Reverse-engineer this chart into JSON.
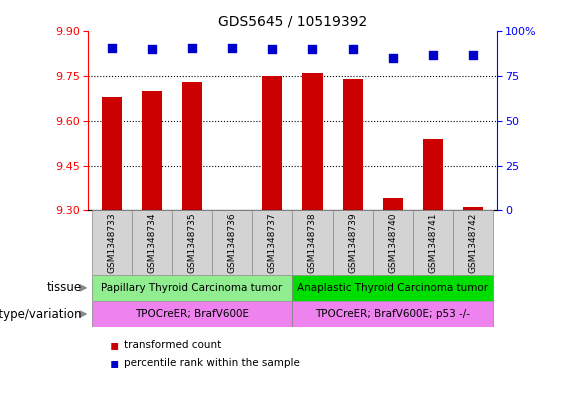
{
  "title": "GDS5645 / 10519392",
  "samples": [
    "GSM1348733",
    "GSM1348734",
    "GSM1348735",
    "GSM1348736",
    "GSM1348737",
    "GSM1348738",
    "GSM1348739",
    "GSM1348740",
    "GSM1348741",
    "GSM1348742"
  ],
  "transformed_count": [
    9.68,
    9.7,
    9.73,
    9.3,
    9.75,
    9.76,
    9.74,
    9.34,
    9.54,
    9.31
  ],
  "percentile_rank": [
    91,
    90,
    91,
    91,
    90,
    90,
    90,
    85,
    87,
    87
  ],
  "ylim_left": [
    9.3,
    9.9
  ],
  "ylim_right": [
    0,
    100
  ],
  "yticks_left": [
    9.3,
    9.45,
    9.6,
    9.75,
    9.9
  ],
  "yticks_right": [
    0,
    25,
    50,
    75,
    100
  ],
  "bar_color": "#cc0000",
  "dot_color": "#0000cc",
  "tissue_group1_label": "Papillary Thyroid Carcinoma tumor",
  "tissue_group2_label": "Anaplastic Thyroid Carcinoma tumor",
  "tissue_group1_color": "#90ee90",
  "tissue_group2_color": "#00dd00",
  "genotype_group1_label": "TPOCreER; BrafV600E",
  "genotype_group2_label": "TPOCreER; BrafV600E; p53 -/-",
  "genotype_color": "#ee82ee",
  "legend_red_label": "transformed count",
  "legend_blue_label": "percentile rank within the sample",
  "tissue_label": "tissue",
  "genotype_label": "genotype/variation",
  "split_index": 5,
  "bar_width": 0.5,
  "dot_size": 30,
  "sample_box_color": "#d3d3d3",
  "sample_box_edge": "#888888"
}
